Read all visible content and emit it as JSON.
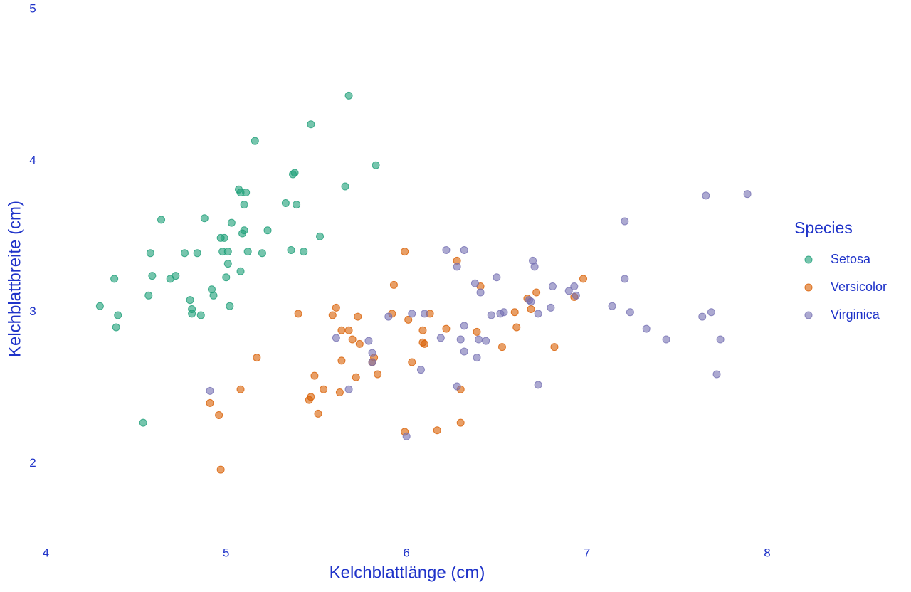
{
  "chart_data": {
    "type": "scatter",
    "xlabel": "Kelchblattlänge (cm)",
    "ylabel": "Kelchblattbreite (cm)",
    "legend_title": "Species",
    "legend": "right",
    "grid": false,
    "xlim": [
      3.75,
      8.15
    ],
    "ylim": [
      1.5,
      5.0
    ],
    "xticks": [
      4,
      5,
      6,
      7,
      8
    ],
    "yticks": [
      2,
      3,
      4,
      5
    ],
    "series": [
      {
        "name": "Setosa",
        "color": "#1b9e77",
        "x": [
          4.3,
          4.38,
          4.4,
          4.39,
          4.57,
          4.58,
          4.59,
          4.64,
          4.69,
          4.72,
          4.77,
          4.8,
          4.81,
          4.81,
          4.84,
          4.86,
          4.88,
          4.92,
          4.93,
          4.97,
          4.98,
          4.99,
          5.0,
          5.01,
          5.01,
          5.02,
          5.03,
          5.08,
          5.07,
          5.08,
          5.09,
          5.1,
          5.1,
          5.11,
          5.12,
          5.16,
          5.2,
          5.23,
          5.33,
          5.36,
          5.37,
          5.38,
          5.39,
          5.43,
          5.47,
          5.52,
          5.66,
          5.68,
          5.83,
          4.54
        ],
        "values": [
          3.04,
          3.22,
          2.98,
          2.9,
          3.11,
          3.39,
          3.24,
          3.61,
          3.22,
          3.24,
          3.39,
          3.08,
          3.02,
          2.99,
          3.39,
          2.98,
          3.62,
          3.15,
          3.11,
          3.49,
          3.4,
          3.49,
          3.23,
          3.4,
          3.32,
          3.04,
          3.59,
          3.27,
          3.81,
          3.79,
          3.52,
          3.54,
          3.71,
          3.79,
          3.4,
          4.13,
          3.39,
          3.54,
          3.72,
          3.41,
          3.91,
          3.92,
          3.71,
          3.4,
          4.24,
          3.5,
          3.83,
          4.43,
          3.97,
          2.27
        ]
      },
      {
        "name": "Versicolor",
        "color": "#d95f02",
        "x": [
          4.97,
          4.91,
          4.96,
          5.08,
          5.17,
          5.4,
          5.46,
          5.49,
          5.47,
          5.51,
          5.54,
          5.59,
          5.61,
          5.63,
          5.64,
          5.64,
          5.68,
          5.7,
          5.73,
          5.72,
          5.74,
          5.82,
          5.81,
          5.84,
          5.92,
          5.93,
          5.99,
          5.99,
          6.01,
          6.03,
          6.09,
          6.09,
          6.1,
          6.13,
          6.17,
          6.22,
          6.28,
          6.3,
          6.3,
          6.39,
          6.41,
          6.53,
          6.6,
          6.61,
          6.67,
          6.69,
          6.72,
          6.82,
          6.93,
          6.98
        ],
        "values": [
          1.96,
          2.4,
          2.32,
          2.49,
          2.7,
          2.99,
          2.42,
          2.58,
          2.44,
          2.33,
          2.49,
          2.98,
          3.03,
          2.47,
          2.88,
          2.68,
          2.88,
          2.82,
          2.97,
          2.57,
          2.79,
          2.7,
          2.67,
          2.59,
          2.99,
          3.18,
          3.4,
          2.21,
          2.95,
          2.67,
          2.88,
          2.8,
          2.79,
          2.99,
          2.22,
          2.89,
          3.34,
          2.49,
          2.27,
          2.87,
          3.17,
          2.77,
          3.0,
          2.9,
          3.09,
          3.02,
          3.13,
          2.77,
          3.1,
          3.22
        ]
      },
      {
        "name": "Virginica",
        "color": "#7570b3",
        "x": [
          4.91,
          5.61,
          5.68,
          5.79,
          5.81,
          5.81,
          5.9,
          6.0,
          6.03,
          6.08,
          6.1,
          6.19,
          6.22,
          6.28,
          6.28,
          6.3,
          6.32,
          6.32,
          6.32,
          6.38,
          6.4,
          6.39,
          6.41,
          6.44,
          6.47,
          6.5,
          6.52,
          6.54,
          6.68,
          6.69,
          6.7,
          6.71,
          6.73,
          6.73,
          6.8,
          6.81,
          6.9,
          6.93,
          6.94,
          7.14,
          7.21,
          7.21,
          7.24,
          7.33,
          7.44,
          7.64,
          7.66,
          7.69,
          7.72,
          7.74,
          7.89
        ],
        "values": [
          2.48,
          2.83,
          2.49,
          2.81,
          2.73,
          2.67,
          2.97,
          2.18,
          2.99,
          2.62,
          2.99,
          2.83,
          3.41,
          2.51,
          3.3,
          2.82,
          2.74,
          2.91,
          3.41,
          3.19,
          2.82,
          2.7,
          3.13,
          2.81,
          2.98,
          3.23,
          2.99,
          3.0,
          3.08,
          3.07,
          3.34,
          3.3,
          2.99,
          2.52,
          3.03,
          3.17,
          3.14,
          3.17,
          3.11,
          3.04,
          3.6,
          3.22,
          3.0,
          2.89,
          2.82,
          2.97,
          3.77,
          3.0,
          2.59,
          2.82,
          3.78
        ]
      }
    ]
  }
}
